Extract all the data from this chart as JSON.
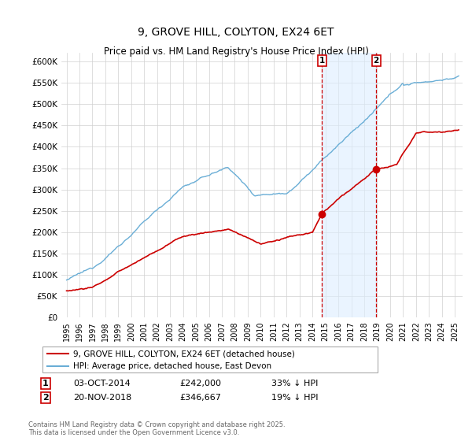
{
  "title": "9, GROVE HILL, COLYTON, EX24 6ET",
  "subtitle": "Price paid vs. HM Land Registry's House Price Index (HPI)",
  "ylim": [
    0,
    620000
  ],
  "yticks": [
    0,
    50000,
    100000,
    150000,
    200000,
    250000,
    300000,
    350000,
    400000,
    450000,
    500000,
    550000,
    600000
  ],
  "ytick_labels": [
    "£0",
    "£50K",
    "£100K",
    "£150K",
    "£200K",
    "£250K",
    "£300K",
    "£350K",
    "£400K",
    "£450K",
    "£500K",
    "£550K",
    "£600K"
  ],
  "hpi_color": "#6aaed6",
  "hpi_fill_color": "#d6e9f7",
  "price_color": "#cc0000",
  "marker1_date": 2014.75,
  "marker1_price": 242000,
  "marker1_label": "1",
  "marker2_date": 2018.92,
  "marker2_price": 346667,
  "marker2_label": "2",
  "legend_line1": "9, GROVE HILL, COLYTON, EX24 6ET (detached house)",
  "legend_line2": "HPI: Average price, detached house, East Devon",
  "footnote": "Contains HM Land Registry data © Crown copyright and database right 2025.\nThis data is licensed under the Open Government Licence v3.0.",
  "bg_color": "#ffffff",
  "grid_color": "#d0d0d0",
  "shade_color": "#ddeeff"
}
